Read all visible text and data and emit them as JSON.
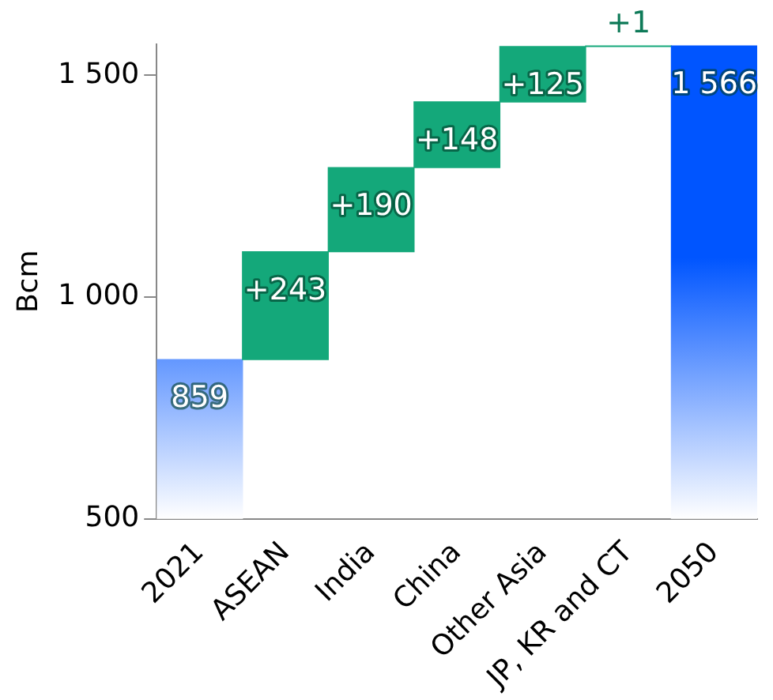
{
  "chart_data": {
    "type": "bar",
    "ylabel": "Bcm",
    "categories": [
      "2021",
      "ASEAN",
      "India",
      "China",
      "Other Asia",
      "JP, KR and CT",
      "2050"
    ],
    "values": [
      859,
      243,
      190,
      148,
      125,
      1,
      1566
    ],
    "base": [
      null,
      859,
      1102,
      1292,
      1440,
      1565,
      null
    ],
    "colors": [
      "#0055ff",
      "#14a87a",
      "#14a87a",
      "#14a87a",
      "#14a87a",
      "#14a87a",
      "#0055ff"
    ],
    "value_labels": [
      "859",
      "+243",
      "+190",
      "+148",
      "+125",
      "+1",
      "1 566"
    ],
    "ylim": [
      500,
      1570
    ],
    "yticks": [
      500,
      {
        "value": 1000,
        "label": "1 000"
      },
      {
        "value": 1500,
        "label": "1 500"
      }
    ],
    "grid": false,
    "legend": false
  }
}
